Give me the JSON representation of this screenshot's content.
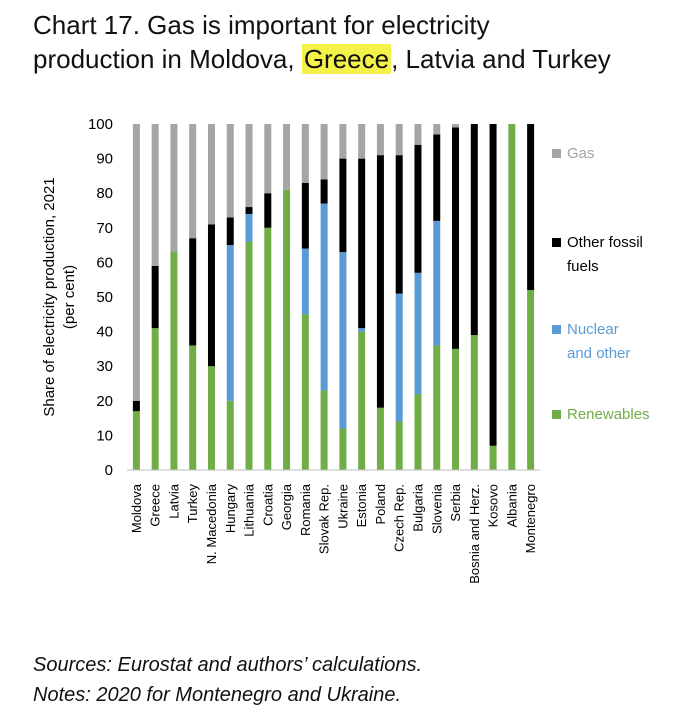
{
  "title": {
    "part1": "Chart 17. Gas is important for electricity",
    "part2": "production in Moldova, ",
    "highlight": "Greece",
    "part3": ", Latvia and Turkey"
  },
  "notes": {
    "sources": "Sources: Eurostat and authors’ calculations.",
    "notes": "Notes: 2020 for Montenegro and Ukraine."
  },
  "chart_data": {
    "type": "bar",
    "stacked": true,
    "ylabel": "Share of electricity production, 2021 (per cent)",
    "ylim": [
      0,
      100
    ],
    "yticks": [
      0,
      10,
      20,
      30,
      40,
      50,
      60,
      70,
      80,
      90,
      100
    ],
    "categories": [
      "Moldova",
      "Greece",
      "Latvia",
      "Turkey",
      "N. Macedonia",
      "Hungary",
      "Lithuania",
      "Croatia",
      "Georgia",
      "Romania",
      "Slovak Rep.",
      "Ukraine",
      "Estonia",
      "Poland",
      "Czech Rep.",
      "Bulgaria",
      "Slovenia",
      "Serbia",
      "Bosnia and Herz.",
      "Kosovo",
      "Albania",
      "Montenegro"
    ],
    "series": [
      {
        "name": "Renewables",
        "color": "#70ad47",
        "values": [
          17,
          41,
          63,
          36,
          30,
          20,
          66,
          70,
          81,
          45,
          23,
          12,
          40,
          18,
          14,
          22,
          36,
          35,
          39,
          7,
          100,
          52
        ]
      },
      {
        "name": "Nuclear and other",
        "color": "#5b9bd5",
        "values": [
          0,
          0,
          0,
          0,
          0,
          45,
          8,
          0,
          0,
          19,
          54,
          51,
          1,
          0,
          37,
          35,
          36,
          0,
          0,
          0,
          0,
          0
        ]
      },
      {
        "name": "Other fossil fuels",
        "color": "#000000",
        "values": [
          3,
          18,
          0,
          31,
          41,
          8,
          2,
          10,
          0,
          19,
          7,
          27,
          49,
          73,
          40,
          37,
          25,
          64,
          61,
          93,
          0,
          48
        ]
      },
      {
        "name": "Gas",
        "color": "#a5a5a5",
        "values": [
          80,
          41,
          37,
          33,
          29,
          27,
          24,
          20,
          19,
          17,
          16,
          10,
          10,
          9,
          9,
          6,
          3,
          1,
          0,
          0,
          0,
          0
        ]
      }
    ],
    "legend_labels": [
      {
        "series": "Gas",
        "lines": [
          "Gas"
        ]
      },
      {
        "series": "Other fossil fuels",
        "lines": [
          "Other fossil",
          "fuels"
        ]
      },
      {
        "series": "Nuclear and other",
        "lines": [
          "Nuclear",
          "and other"
        ]
      },
      {
        "series": "Renewables",
        "lines": [
          "Renewables"
        ]
      }
    ],
    "legend_position": "right"
  }
}
